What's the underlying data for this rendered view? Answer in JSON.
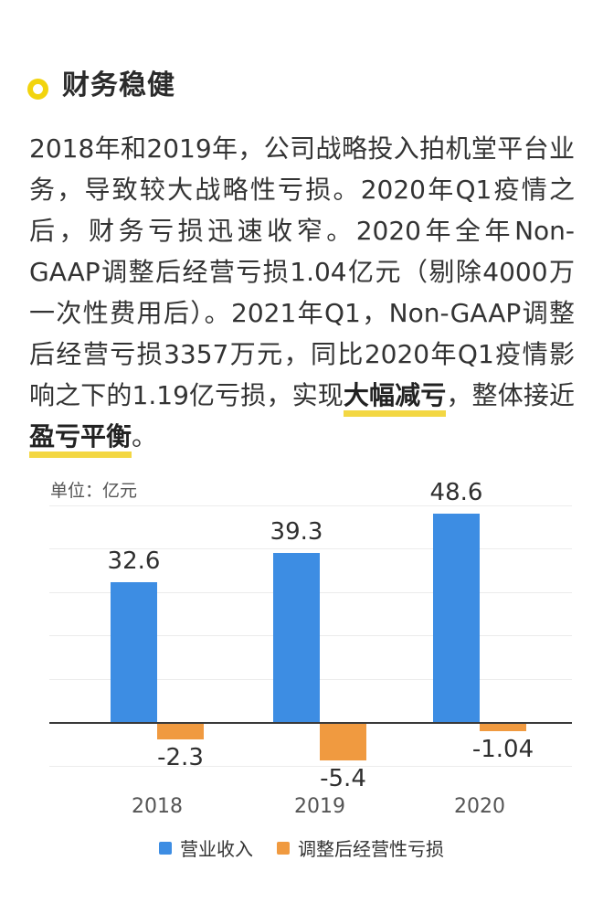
{
  "header": {
    "title": "财务稳健"
  },
  "paragraph": {
    "segments": [
      {
        "text": "2018年和2019年，公司战略投入拍机堂平台业务，导致较大战略性亏损。2020年Q1疫情之后，财务亏损迅速收窄。2020年全年Non-GAAP调整后经营亏损1.04亿元（剔除4000万一次性费用后）。2021年Q1，Non-GAAP调整后经营亏损3357万元，同比2020年Q1疫情影响之下的1.19亿亏损，实现",
        "emphasis": false
      },
      {
        "text": "大幅减亏",
        "emphasis": true
      },
      {
        "text": "，整体接近",
        "emphasis": false
      },
      {
        "text": "盈亏平衡",
        "emphasis": true
      },
      {
        "text": "。",
        "emphasis": false
      }
    ]
  },
  "chart_data": {
    "type": "bar",
    "title": "",
    "unit_label": "单位：亿元",
    "categories": [
      "2018",
      "2019",
      "2020"
    ],
    "series": [
      {
        "name": "营业收入",
        "color": "#3D8DE3",
        "values": [
          32.6,
          39.3,
          48.6
        ],
        "labels": [
          "32.6",
          "39.3",
          "48.6"
        ]
      },
      {
        "name": "调整后经营性亏损",
        "color": "#F09A40",
        "values": [
          -2.3,
          -5.4,
          -1.04
        ],
        "labels": [
          "-2.3",
          "-5.4",
          "-1.04"
        ]
      }
    ],
    "ylim": [
      -10,
      50
    ],
    "grid": "horizontal-light",
    "legend_position": "bottom"
  },
  "colors": {
    "accent_yellow": "#F2D40E",
    "underline_yellow": "#F3D743",
    "bar_blue": "#3D8DE3",
    "bar_orange": "#F09A40",
    "text_primary": "#333333",
    "text_secondary": "#555555",
    "gridline": "#ECECEC",
    "axis": "#3A3A3A"
  }
}
